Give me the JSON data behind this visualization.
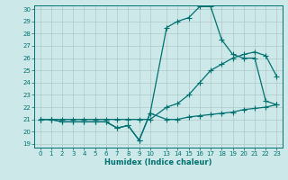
{
  "xlabel": "Humidex (Indice chaleur)",
  "bg_color": "#cce8e8",
  "grid_color": "#b0c8c8",
  "line_color": "#007070",
  "x_ticks_labels": [
    0,
    1,
    2,
    3,
    4,
    5,
    6,
    7,
    8,
    9,
    10,
    13,
    14,
    15,
    16,
    17,
    18,
    19,
    20,
    21,
    22,
    23
  ],
  "ylim": [
    19,
    30
  ],
  "line1_y": [
    21.0,
    21.0,
    20.8,
    20.8,
    20.8,
    20.8,
    20.8,
    20.3,
    20.5,
    19.3,
    21.5,
    21.0,
    21.0,
    21.2,
    21.3,
    21.4,
    21.5,
    21.6,
    21.8,
    21.9,
    22.0,
    22.2
  ],
  "line2_y": [
    21.0,
    21.0,
    21.0,
    21.0,
    21.0,
    21.0,
    21.0,
    21.0,
    21.0,
    21.0,
    21.0,
    22.0,
    22.3,
    23.0,
    24.0,
    25.0,
    25.5,
    26.0,
    26.3,
    26.5,
    26.2,
    24.5
  ],
  "line3_y": [
    21.0,
    21.0,
    20.8,
    20.8,
    20.8,
    20.8,
    20.8,
    20.3,
    20.5,
    19.3,
    21.5,
    28.5,
    29.0,
    29.3,
    30.2,
    30.2,
    27.5,
    26.3,
    26.0,
    26.0,
    22.5,
    22.2
  ],
  "markersize": 4,
  "linewidth": 0.9
}
